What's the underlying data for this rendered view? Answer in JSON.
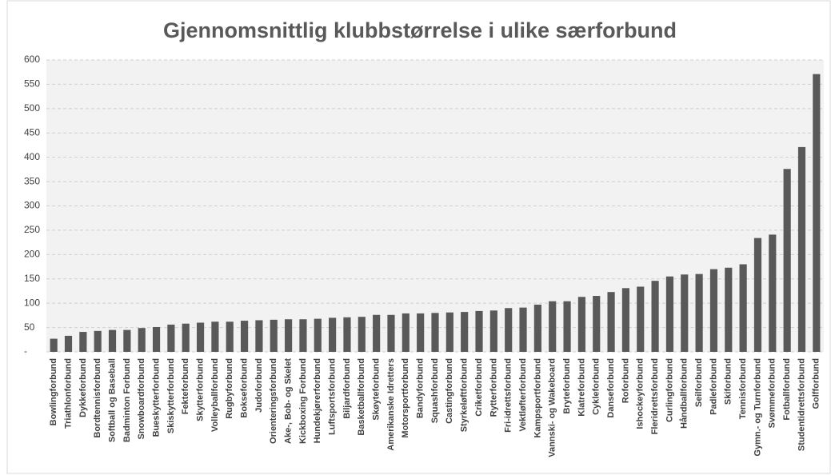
{
  "chart_data": {
    "type": "bar",
    "title": "Gjennomsnittlig klubbstørrelse i ulike særforbund",
    "categories": [
      "Bowlingforbund",
      "Triathlonforbund",
      "Dykkeforbund",
      "Bordtennisforbund",
      "Softball og Baseball",
      "Badminton Forbund",
      "Snowboardforbund",
      "Bueskytterforbund",
      "Skiskytterforbund",
      "Fekteforbund",
      "Skytterforbund",
      "Volleyballforbund",
      "Rugbyforbund",
      "Bokseforbund",
      "Judoforbund",
      "Orienteringsforbund",
      "Ake-, Bob- og Skelet",
      "Kickboxing Forbund",
      "Hundekjørerforbund",
      "Luftsportsforbund",
      "Biljardforbund",
      "Basketballforbund",
      "Skøyteforbund",
      "Amerikanske Idretters",
      "Motorsportforbund",
      "Bandyforbund",
      "Squashforbund",
      "Castingforbund",
      "Styrkeløftforbund",
      "Criketforbund",
      "Rytterforbund",
      "Fri-idrettsforbund",
      "Vektløfterforbund",
      "Kampsportforbund",
      "Vannski- og Wakeboard",
      "Bryteforbund",
      "Klatreforbund",
      "Cykleforbund",
      "Danseforbund",
      "Roforbund",
      "Ishockeyforbund",
      "Fleridrettsforbund",
      "Curlingforbund",
      "Håndballforbund",
      "Seilforbund",
      "Padleforbund",
      "Skiforbund",
      "Tennisforbund",
      "Gymn.- og Turnforbund",
      "Svømmeforbund",
      "Fotballforbund",
      "Studentidrettsforbund",
      "Golfforbund"
    ],
    "values": [
      27,
      33,
      41,
      43,
      45,
      45,
      49,
      51,
      56,
      58,
      60,
      62,
      62,
      64,
      65,
      66,
      67,
      67,
      68,
      70,
      71,
      72,
      76,
      76,
      79,
      79,
      80,
      81,
      82,
      84,
      85,
      90,
      91,
      97,
      104,
      104,
      113,
      115,
      123,
      131,
      134,
      146,
      155,
      159,
      160,
      170,
      173,
      180,
      234,
      241,
      376,
      421,
      571
    ],
    "color": "#595959",
    "ylim": [
      0,
      600
    ],
    "yticks": [
      {
        "value": 0,
        "label": "-"
      },
      50,
      100,
      150,
      200,
      250,
      300,
      350,
      400,
      450,
      500,
      550,
      600
    ],
    "grid": true
  }
}
